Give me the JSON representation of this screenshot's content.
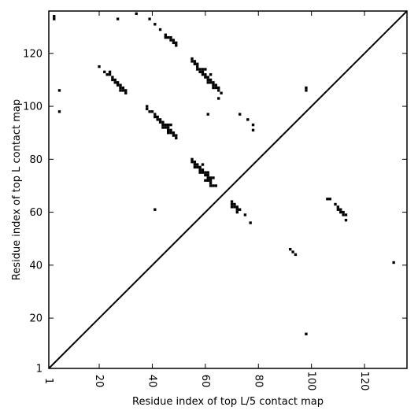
{
  "chart_data": {
    "type": "scatter",
    "title": "",
    "xlabel": "Residue index of top L/5 contact map",
    "ylabel": "Residue index of top L contact map",
    "xlim": [
      1,
      136
    ],
    "ylim": [
      1,
      136
    ],
    "xticks": [
      1,
      20,
      40,
      60,
      80,
      100,
      120
    ],
    "yticks": [
      1,
      20,
      40,
      60,
      80,
      100,
      120
    ],
    "grid": false,
    "legend": "none",
    "diagonal": true,
    "colors": {
      "marker": "#000000",
      "background": "#ffffff"
    },
    "series": [
      {
        "name": "",
        "points": [
          [
            3,
            133
          ],
          [
            3,
            134
          ],
          [
            27,
            133
          ],
          [
            34,
            135
          ],
          [
            39,
            133
          ],
          [
            41,
            131
          ],
          [
            43,
            129
          ],
          [
            45,
            127
          ],
          [
            45,
            126
          ],
          [
            46,
            126
          ],
          [
            47,
            126
          ],
          [
            47,
            125
          ],
          [
            48,
            125
          ],
          [
            48,
            124
          ],
          [
            49,
            124
          ],
          [
            49,
            123
          ],
          [
            5,
            106
          ],
          [
            5,
            98
          ],
          [
            20,
            115
          ],
          [
            22,
            113
          ],
          [
            23,
            112
          ],
          [
            24,
            112
          ],
          [
            24,
            113
          ],
          [
            25,
            111
          ],
          [
            25,
            110
          ],
          [
            26,
            110
          ],
          [
            26,
            109
          ],
          [
            27,
            109
          ],
          [
            27,
            108
          ],
          [
            28,
            108
          ],
          [
            28,
            107
          ],
          [
            29,
            107
          ],
          [
            29,
            106
          ],
          [
            28,
            106
          ],
          [
            30,
            106
          ],
          [
            30,
            105
          ],
          [
            38,
            100
          ],
          [
            38,
            99
          ],
          [
            39,
            98
          ],
          [
            40,
            98
          ],
          [
            41,
            97
          ],
          [
            41,
            96
          ],
          [
            42,
            96
          ],
          [
            42,
            95
          ],
          [
            43,
            95
          ],
          [
            43,
            94
          ],
          [
            44,
            94
          ],
          [
            44,
            93
          ],
          [
            44,
            92
          ],
          [
            45,
            93
          ],
          [
            45,
            92
          ],
          [
            46,
            93
          ],
          [
            46,
            92
          ],
          [
            46,
            91
          ],
          [
            46,
            90
          ],
          [
            47,
            91
          ],
          [
            47,
            90
          ],
          [
            47,
            93
          ],
          [
            48,
            90
          ],
          [
            48,
            89
          ],
          [
            49,
            89
          ],
          [
            49,
            88
          ],
          [
            55,
            118
          ],
          [
            55,
            117
          ],
          [
            56,
            117
          ],
          [
            56,
            116
          ],
          [
            57,
            116
          ],
          [
            57,
            115
          ],
          [
            57,
            114
          ],
          [
            58,
            114
          ],
          [
            58,
            113
          ],
          [
            59,
            114
          ],
          [
            59,
            113
          ],
          [
            59,
            112
          ],
          [
            60,
            112
          ],
          [
            60,
            111
          ],
          [
            60,
            114
          ],
          [
            61,
            111
          ],
          [
            61,
            110
          ],
          [
            61,
            109
          ],
          [
            62,
            110
          ],
          [
            62,
            109
          ],
          [
            62,
            112
          ],
          [
            63,
            109
          ],
          [
            63,
            108
          ],
          [
            63,
            107
          ],
          [
            64,
            108
          ],
          [
            64,
            107
          ],
          [
            65,
            107
          ],
          [
            65,
            106
          ],
          [
            65,
            103
          ],
          [
            66,
            105
          ],
          [
            61,
            97
          ],
          [
            55,
            80
          ],
          [
            55,
            79
          ],
          [
            56,
            79
          ],
          [
            56,
            78
          ],
          [
            56,
            77
          ],
          [
            57,
            78
          ],
          [
            57,
            77
          ],
          [
            58,
            77
          ],
          [
            58,
            76
          ],
          [
            58,
            75
          ],
          [
            59,
            76
          ],
          [
            59,
            75
          ],
          [
            59,
            78
          ],
          [
            60,
            75
          ],
          [
            60,
            74
          ],
          [
            61,
            75
          ],
          [
            61,
            74
          ],
          [
            61,
            73
          ],
          [
            61,
            72
          ],
          [
            60,
            72
          ],
          [
            62,
            73
          ],
          [
            62,
            72
          ],
          [
            62,
            71
          ],
          [
            62,
            70
          ],
          [
            63,
            73
          ],
          [
            63,
            70
          ],
          [
            64,
            70
          ],
          [
            41,
            61
          ],
          [
            70,
            64
          ],
          [
            70,
            63
          ],
          [
            70,
            62
          ],
          [
            71,
            63
          ],
          [
            71,
            62
          ],
          [
            72,
            62
          ],
          [
            72,
            61
          ],
          [
            72,
            60
          ],
          [
            73,
            61
          ],
          [
            75,
            59
          ],
          [
            77,
            56
          ],
          [
            73,
            97
          ],
          [
            76,
            95
          ],
          [
            78,
            93
          ],
          [
            78,
            91
          ],
          [
            98,
            107
          ],
          [
            98,
            106
          ],
          [
            106,
            65
          ],
          [
            107,
            65
          ],
          [
            109,
            63
          ],
          [
            110,
            62
          ],
          [
            110,
            61
          ],
          [
            111,
            61
          ],
          [
            111,
            60
          ],
          [
            112,
            60
          ],
          [
            112,
            59
          ],
          [
            113,
            59
          ],
          [
            113,
            57
          ],
          [
            92,
            46
          ],
          [
            93,
            45
          ],
          [
            94,
            44
          ],
          [
            131,
            41
          ],
          [
            98,
            14
          ]
        ]
      }
    ]
  }
}
